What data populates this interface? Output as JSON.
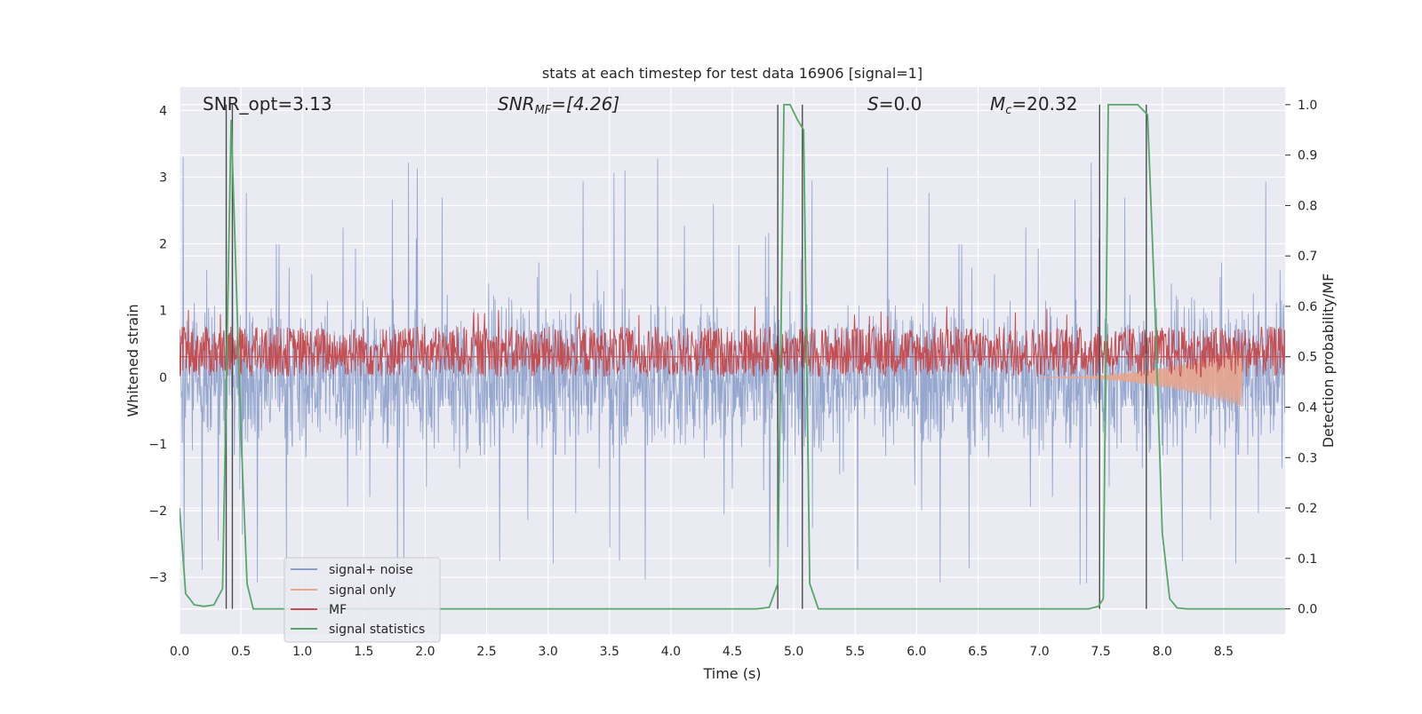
{
  "chart_data": {
    "type": "line",
    "title": "stats at each timestep for test data 16906 [signal=1]",
    "xlabel": "Time (s)",
    "ylabel_left": "Whitened strain",
    "ylabel_right": "Detection probability/MF",
    "xlim": [
      0.0,
      9.0
    ],
    "ylim_left": [
      -3.85,
      4.35
    ],
    "ylim_right": [
      -0.05,
      1.035
    ],
    "x_ticks": [
      "0.0",
      "0.5",
      "1.0",
      "1.5",
      "2.0",
      "2.5",
      "3.0",
      "3.5",
      "4.0",
      "4.5",
      "5.0",
      "5.5",
      "6.0",
      "6.5",
      "7.0",
      "7.5",
      "8.0",
      "8.5"
    ],
    "y_left_ticks": [
      "−3",
      "−2",
      "−1",
      "0",
      "1",
      "2",
      "3",
      "4"
    ],
    "y_right_ticks": [
      "0.0",
      "0.1",
      "0.2",
      "0.3",
      "0.4",
      "0.5",
      "0.6",
      "0.7",
      "0.8",
      "0.9",
      "1.0"
    ],
    "grid": true,
    "legend_position": "lower-left",
    "annotations": {
      "snr_opt": "SNR_opt=3.13",
      "snr_mf_prefix": "SNR",
      "snr_mf_sub": "MF",
      "snr_mf_value": "=[4.26]",
      "s_symbol": "S",
      "s_value": "=0.0",
      "mc_symbol": "M",
      "mc_sub": "c",
      "mc_value": "=20.32"
    },
    "series": [
      {
        "name": "signal+ noise",
        "color": "#8da0cb",
        "axis": "left",
        "noise": {
          "mean": 0.0,
          "spread": 1.2,
          "spike_max": 4.0,
          "spike_min": -3.5
        }
      },
      {
        "name": "signal only",
        "color": "#e8a58c",
        "axis": "left",
        "chirp": {
          "start": 7.0,
          "end": 8.65,
          "amplitude_end": -0.45
        }
      },
      {
        "name": "MF",
        "color": "#c44e52",
        "axis": "right",
        "baseline": 0.5,
        "band": [
          0.46,
          0.56
        ],
        "peak": 0.6
      },
      {
        "name": "signal statistics",
        "color": "#55a868",
        "axis": "right",
        "x": [
          0.0,
          0.05,
          0.12,
          0.2,
          0.28,
          0.35,
          0.42,
          0.5,
          0.55,
          0.6,
          0.7,
          0.8,
          4.7,
          4.8,
          4.87,
          4.92,
          4.97,
          5.03,
          5.08,
          5.13,
          5.2,
          5.3,
          7.4,
          7.48,
          7.52,
          7.56,
          7.62,
          7.7,
          7.8,
          7.88,
          7.94,
          8.0,
          8.06,
          8.12,
          8.2,
          9.0
        ],
        "y": [
          0.2,
          0.03,
          0.008,
          0.005,
          0.008,
          0.04,
          0.97,
          0.35,
          0.05,
          0.0,
          0.0,
          0.0,
          0.0,
          0.003,
          0.05,
          1.0,
          1.0,
          0.97,
          0.95,
          0.05,
          0.0,
          0.0,
          0.0,
          0.005,
          0.02,
          1.0,
          1.0,
          1.0,
          1.0,
          0.98,
          0.6,
          0.15,
          0.02,
          0.002,
          0.0,
          0.0
        ]
      },
      {
        "name": "detection markers",
        "color": "#4c4c4c",
        "axis": "right",
        "x": [
          0.38,
          0.43,
          4.87,
          5.07,
          7.49,
          7.87
        ]
      }
    ]
  },
  "legend": {
    "items": [
      {
        "label": "signal+ noise",
        "color": "#8da0cb"
      },
      {
        "label": "signal only",
        "color": "#e8a58c"
      },
      {
        "label": "MF",
        "color": "#c44e52"
      },
      {
        "label": "signal statistics",
        "color": "#55a868"
      }
    ]
  },
  "colors": {
    "axes_bg": "#eaeaf2",
    "grid": "#ffffff"
  }
}
